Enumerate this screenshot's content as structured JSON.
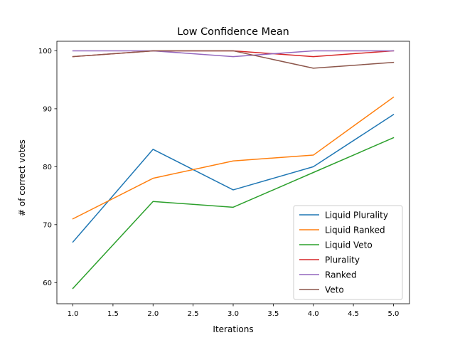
{
  "chart_data": {
    "type": "line",
    "title": "Low Confidence Mean",
    "xlabel": "Iterations",
    "ylabel": "# of correct votes",
    "x": [
      1,
      2,
      3,
      4,
      5
    ],
    "xlim": [
      0.8,
      5.2
    ],
    "ylim": [
      56.35,
      101.65
    ],
    "xticks": [
      "1.0",
      "1.5",
      "2.0",
      "2.5",
      "3.0",
      "3.5",
      "4.0",
      "4.5",
      "5.0"
    ],
    "yticks": [
      "60",
      "70",
      "80",
      "90",
      "100"
    ],
    "grid": false,
    "legend_position": "lower right",
    "series": [
      {
        "name": "Liquid Plurality",
        "color": "#1f77b4",
        "values": [
          67,
          83,
          76,
          80,
          89
        ]
      },
      {
        "name": "Liquid Ranked",
        "color": "#ff7f0e",
        "values": [
          71,
          78,
          81,
          82,
          92
        ]
      },
      {
        "name": "Liquid Veto",
        "color": "#2ca02c",
        "values": [
          59,
          74,
          73,
          79,
          85
        ]
      },
      {
        "name": "Plurality",
        "color": "#d62728",
        "values": [
          99,
          100,
          100,
          99,
          100
        ]
      },
      {
        "name": "Ranked",
        "color": "#9467bd",
        "values": [
          100,
          100,
          99,
          100,
          100
        ]
      },
      {
        "name": "Veto",
        "color": "#8c564b",
        "values": [
          99,
          100,
          100,
          97,
          98
        ]
      }
    ]
  }
}
